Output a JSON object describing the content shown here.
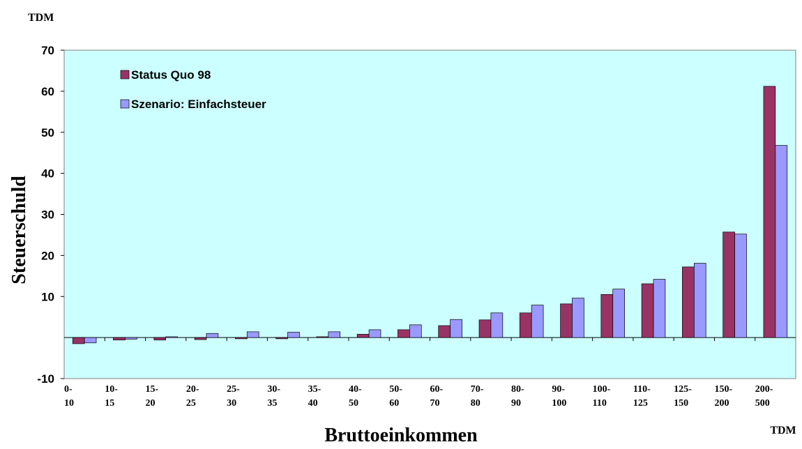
{
  "chart_data": {
    "type": "bar",
    "unit_top": "TDM",
    "unit_bottom": "TDM",
    "y_label": "Steuerschuld",
    "x_label": "Bruttoeinkommen",
    "categories": [
      "0-\n10",
      "10-\n15",
      "15-\n20",
      "20-\n25",
      "25-\n30",
      "30-\n35",
      "35-\n40",
      "40-\n50",
      "50-\n60",
      "60-\n70",
      "70-\n80",
      "80-\n90",
      "90-\n100",
      "100-\n110",
      "110-\n125",
      "125-\n150",
      "150-\n200",
      "200-\n500"
    ],
    "series": [
      {
        "name": "Status Quo 98",
        "color": "#993366",
        "values": [
          -1.5,
          -0.6,
          -0.6,
          -0.5,
          -0.3,
          -0.3,
          0.2,
          0.8,
          1.9,
          2.9,
          4.3,
          6.0,
          8.2,
          10.5,
          13.1,
          17.2,
          25.7,
          61.2
        ]
      },
      {
        "name": "Szenario: Einfachsteuer",
        "color": "#9999ff",
        "values": [
          -1.3,
          -0.4,
          0.2,
          1.0,
          1.4,
          1.3,
          1.4,
          1.9,
          3.1,
          4.4,
          6.0,
          7.9,
          9.6,
          11.8,
          14.2,
          18.1,
          25.2,
          46.8
        ]
      }
    ],
    "ylim": [
      -10,
      70
    ],
    "yticks": [
      -10,
      10,
      20,
      30,
      40,
      50,
      60,
      70
    ],
    "background": "#ccffff"
  }
}
